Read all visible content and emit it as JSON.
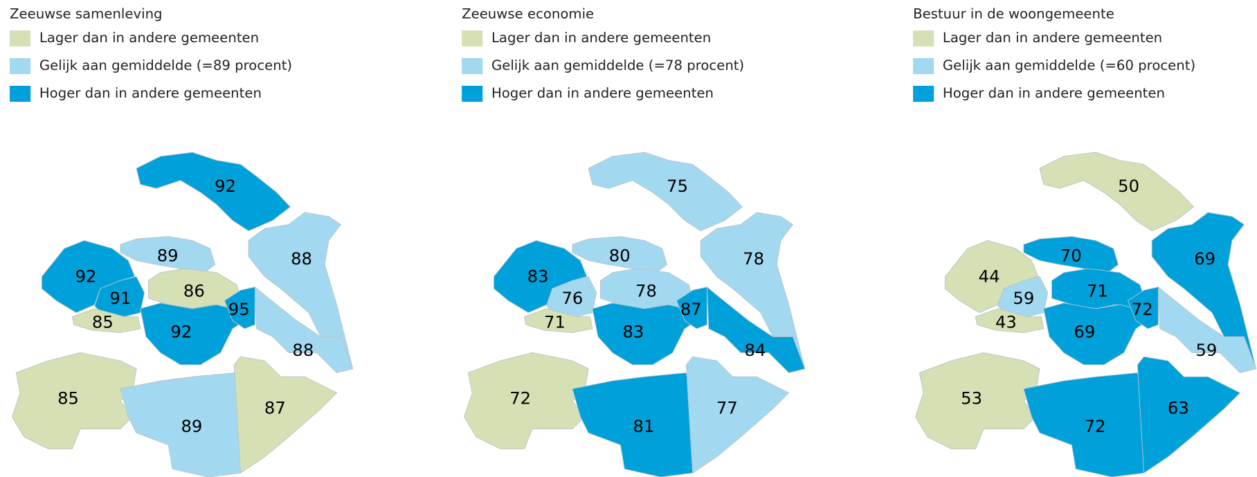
{
  "maps": [
    {
      "title": "Zeeuwse samenleving",
      "legend": [
        {
          "label": "Lager dan in andere gemeenten",
          "color": "#d5e0b5"
        },
        {
          "label": "Gelijk aan gemiddelde (=89 procent)",
          "color": "#a2d9f0"
        },
        {
          "label": "Hoger dan in andere gemeenten",
          "color": "#00a0da"
        }
      ],
      "regions": [
        {
          "value": 92,
          "color": "#00a0da"
        },
        {
          "value": 89,
          "color": "#a2d9f0"
        },
        {
          "value": 88,
          "color": "#a2d9f0"
        },
        {
          "value": 92,
          "color": "#00a0da"
        },
        {
          "value": 91,
          "color": "#00a0da"
        },
        {
          "value": 86,
          "color": "#d5e0b5"
        },
        {
          "value": 85,
          "color": "#d5e0b5"
        },
        {
          "value": 92,
          "color": "#00a0da"
        },
        {
          "value": 95,
          "color": "#00a0da"
        },
        {
          "value": 88,
          "color": "#a2d9f0"
        },
        {
          "value": 85,
          "color": "#d5e0b5"
        },
        {
          "value": 89,
          "color": "#a2d9f0"
        },
        {
          "value": 87,
          "color": "#d5e0b5"
        }
      ]
    },
    {
      "title": "Zeeuwse economie",
      "legend": [
        {
          "label": "Lager dan in andere gemeenten",
          "color": "#d5e0b5"
        },
        {
          "label": "Gelijk aan gemiddelde (=78 procent)",
          "color": "#a2d9f0"
        },
        {
          "label": "Hoger dan in andere gemeenten",
          "color": "#00a0da"
        }
      ],
      "regions": [
        {
          "value": 75,
          "color": "#a2d9f0"
        },
        {
          "value": 80,
          "color": "#a2d9f0"
        },
        {
          "value": 78,
          "color": "#a2d9f0"
        },
        {
          "value": 83,
          "color": "#00a0da"
        },
        {
          "value": 76,
          "color": "#a2d9f0"
        },
        {
          "value": 78,
          "color": "#a2d9f0"
        },
        {
          "value": 71,
          "color": "#d5e0b5"
        },
        {
          "value": 83,
          "color": "#00a0da"
        },
        {
          "value": 87,
          "color": "#00a0da"
        },
        {
          "value": 84,
          "color": "#00a0da"
        },
        {
          "value": 72,
          "color": "#d5e0b5"
        },
        {
          "value": 81,
          "color": "#00a0da"
        },
        {
          "value": 77,
          "color": "#a2d9f0"
        }
      ]
    },
    {
      "title": "Bestuur in de woongemeente",
      "legend": [
        {
          "label": "Lager dan in andere gemeenten",
          "color": "#d5e0b5"
        },
        {
          "label": "Gelijk aan gemiddelde (=60 procent)",
          "color": "#a2d9f0"
        },
        {
          "label": "Hoger dan in andere gemeenten",
          "color": "#00a0da"
        }
      ],
      "regions": [
        {
          "value": 50,
          "color": "#d5e0b5"
        },
        {
          "value": 70,
          "color": "#00a0da"
        },
        {
          "value": 69,
          "color": "#00a0da"
        },
        {
          "value": 44,
          "color": "#d5e0b5"
        },
        {
          "value": 59,
          "color": "#a2d9f0"
        },
        {
          "value": 71,
          "color": "#00a0da"
        },
        {
          "value": 43,
          "color": "#d5e0b5"
        },
        {
          "value": 69,
          "color": "#00a0da"
        },
        {
          "value": 72,
          "color": "#00a0da"
        },
        {
          "value": 59,
          "color": "#a2d9f0"
        },
        {
          "value": 53,
          "color": "#d5e0b5"
        },
        {
          "value": 72,
          "color": "#00a0da"
        },
        {
          "value": 63,
          "color": "#00a0da"
        }
      ]
    }
  ]
}
